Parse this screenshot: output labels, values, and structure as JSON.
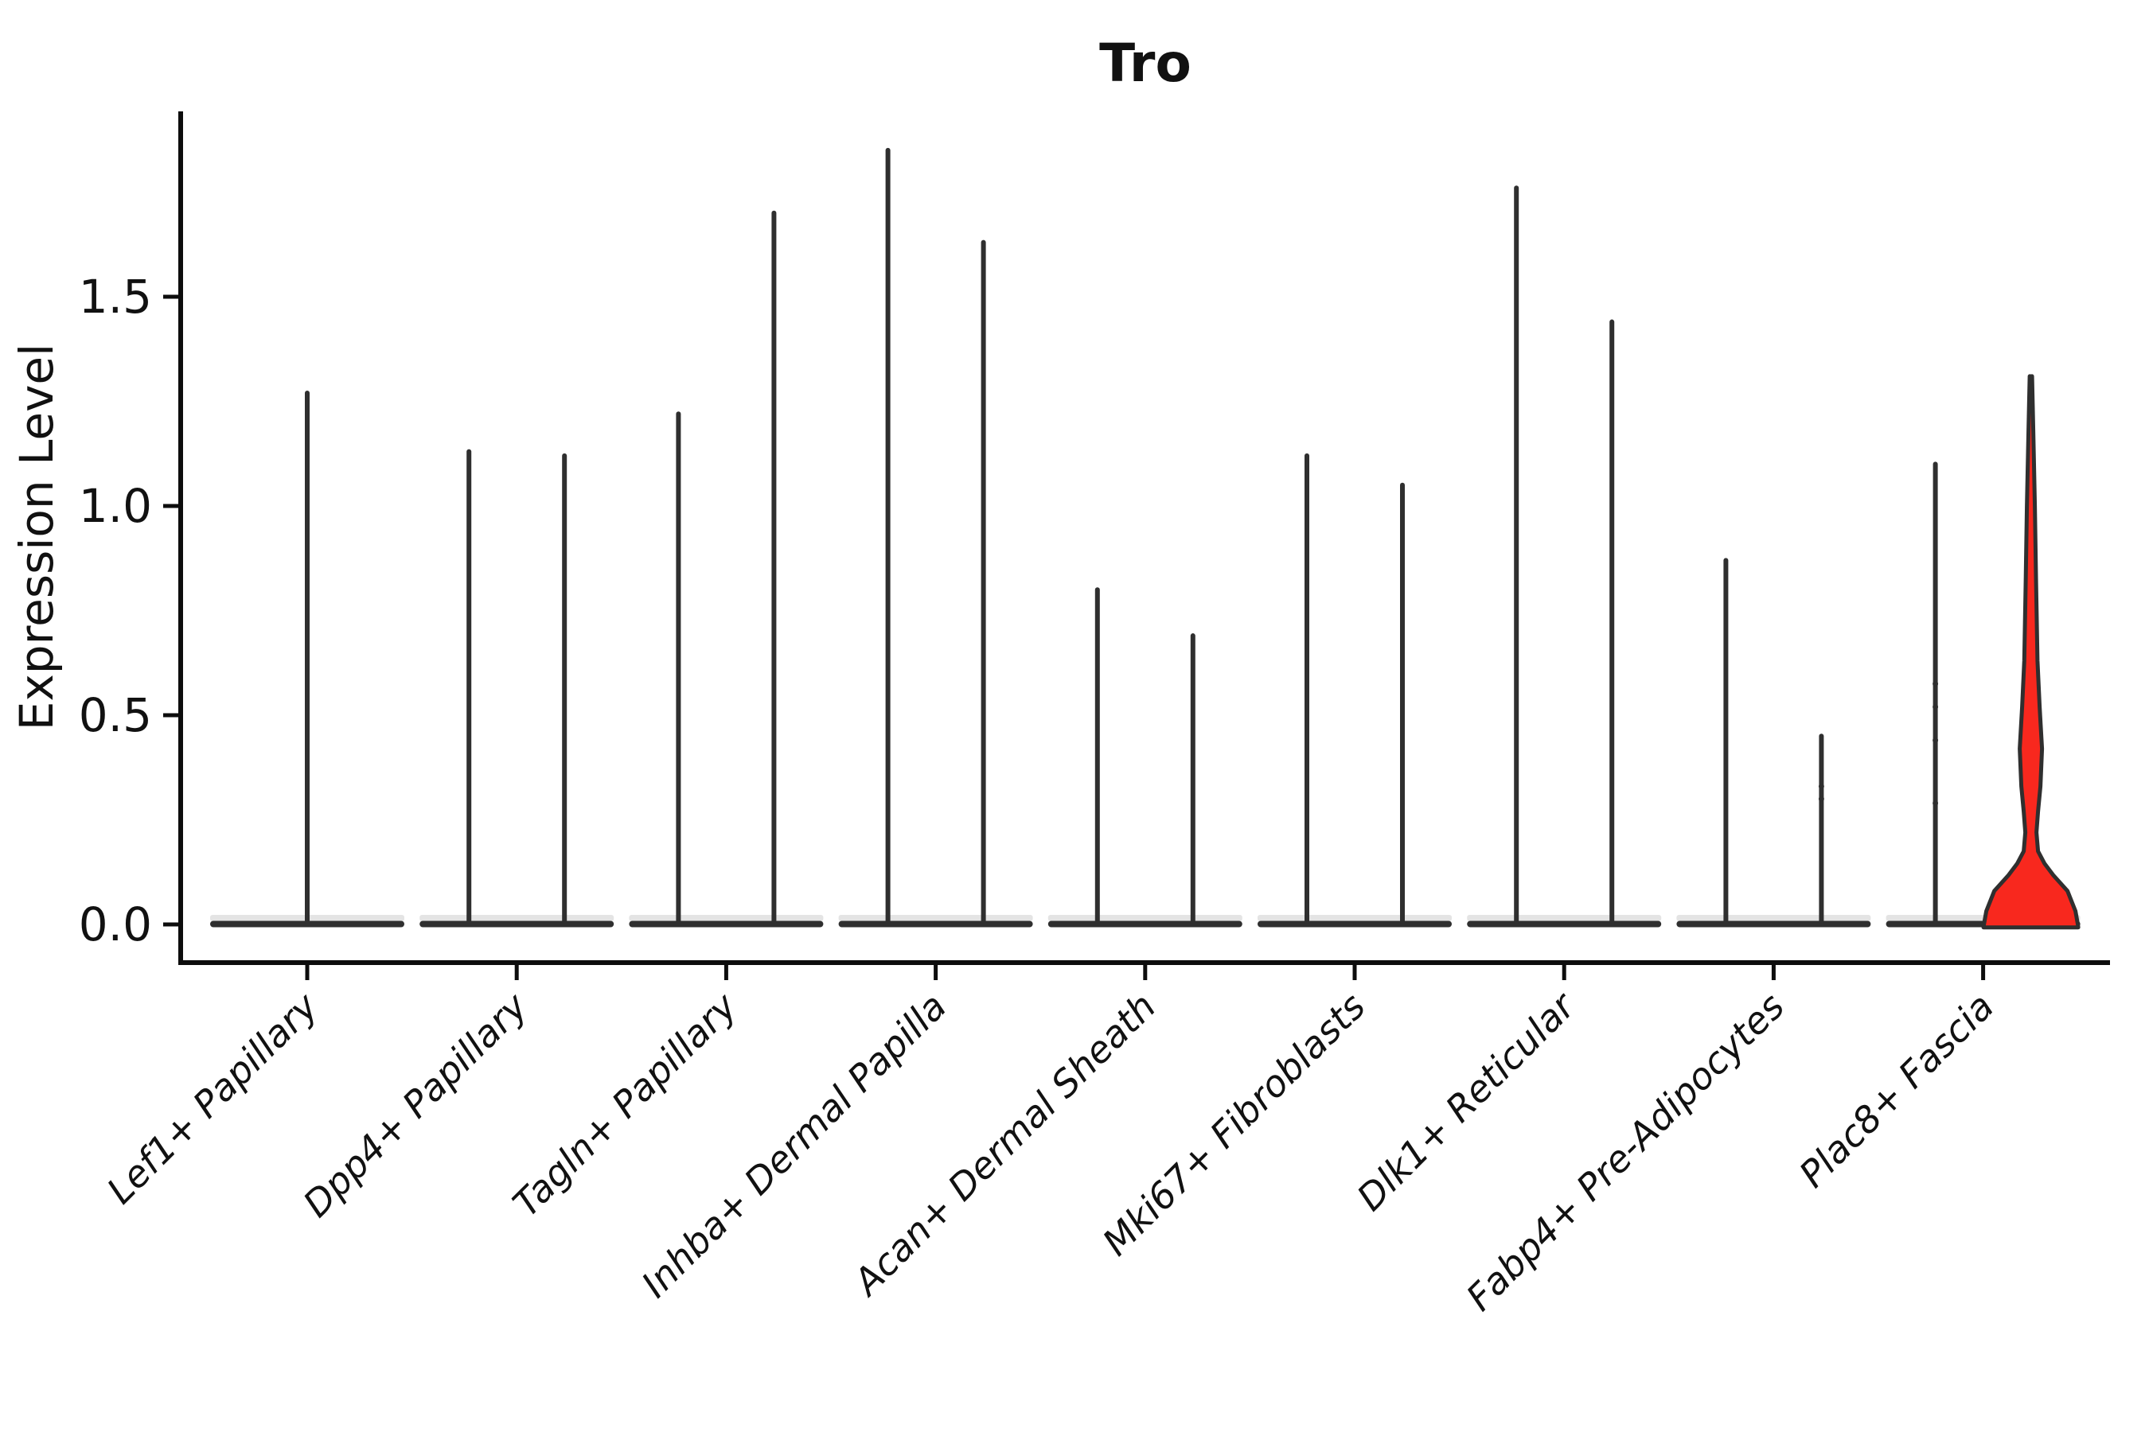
{
  "title": "Tro",
  "axes": {
    "ylabel": "Expression Level",
    "yticks": [
      {
        "label": "0.0",
        "value": 0.0
      },
      {
        "label": "0.5",
        "value": 0.5
      },
      {
        "label": "1.0",
        "value": 1.0
      },
      {
        "label": "1.5",
        "value": 1.5
      }
    ]
  },
  "colors": {
    "violin_outline": "#2f2f2f",
    "highlight_fill": "#f8281e",
    "axis": "#0d0d0d"
  },
  "chart_data": {
    "type": "violin",
    "title": "Tro",
    "xlabel": "",
    "ylabel": "Expression Level",
    "ylim": [
      -0.05,
      1.95
    ],
    "grid": false,
    "legend": "none",
    "categories": [
      "Lef1+ Papillary",
      "Dpp4+ Papillary",
      "Tagln+ Papillary",
      "Inhba+ Dermal Papilla",
      "Acan+ Dermal Sheath",
      "Mki67+ Fibroblasts",
      "Dlk1+ Reticular",
      "Fabp4+ Pre-Adipocytes",
      "Plac8+ Fascia"
    ],
    "description": "Violin plot of Tro expression; most cells at 0 so violins collapse to flat bases with thin spikes up to each group's maximum. Two violins per category (one for the first). The second violin of Plac8+ Fascia is filled red with a visible density bulge.",
    "series": [
      {
        "category": "Lef1+ Papillary",
        "violins": [
          {
            "max": 1.27,
            "filled": false
          }
        ]
      },
      {
        "category": "Dpp4+ Papillary",
        "violins": [
          {
            "max": 1.13,
            "filled": false
          },
          {
            "max": 1.12,
            "filled": false
          }
        ]
      },
      {
        "category": "Tagln+ Papillary",
        "violins": [
          {
            "max": 1.22,
            "filled": false
          },
          {
            "max": 1.7,
            "filled": false
          }
        ]
      },
      {
        "category": "Inhba+ Dermal Papilla",
        "violins": [
          {
            "max": 1.85,
            "filled": false
          },
          {
            "max": 1.63,
            "filled": false
          }
        ]
      },
      {
        "category": "Acan+ Dermal Sheath",
        "violins": [
          {
            "max": 0.8,
            "filled": false
          },
          {
            "max": 0.69,
            "filled": false
          }
        ]
      },
      {
        "category": "Mki67+ Fibroblasts",
        "violins": [
          {
            "max": 1.12,
            "filled": false
          },
          {
            "max": 1.05,
            "filled": false
          }
        ]
      },
      {
        "category": "Dlk1+ Reticular",
        "violins": [
          {
            "max": 1.76,
            "filled": false
          },
          {
            "max": 1.44,
            "filled": false
          }
        ]
      },
      {
        "category": "Fabp4+ Pre-Adipocytes",
        "violins": [
          {
            "max": 0.87,
            "filled": false
          },
          {
            "max": 0.45,
            "filled": false,
            "dots": [
              0.33,
              0.3
            ]
          }
        ]
      },
      {
        "category": "Plac8+ Fascia",
        "violins": [
          {
            "max": 1.1,
            "filled": false,
            "dots": [
              0.575,
              0.52,
              0.44,
              0.29
            ]
          },
          {
            "max": 1.31,
            "filled": true,
            "fill": "#f8281e",
            "profile": [
              [
                1.31,
                1.5
              ],
              [
                1.18,
                3
              ],
              [
                1.0,
                5
              ],
              [
                0.82,
                6.5
              ],
              [
                0.63,
                8.3
              ],
              [
                0.52,
                11
              ],
              [
                0.42,
                14
              ],
              [
                0.33,
                12
              ],
              [
                0.27,
                9
              ],
              [
                0.22,
                7
              ],
              [
                0.175,
                9
              ],
              [
                0.146,
                17
              ],
              [
                0.118,
                28
              ],
              [
                0.08,
                46
              ],
              [
                0.032,
                56
              ],
              [
                0.0,
                59
              ],
              [
                -0.007,
                59.5
              ]
            ]
          }
        ]
      }
    ]
  }
}
